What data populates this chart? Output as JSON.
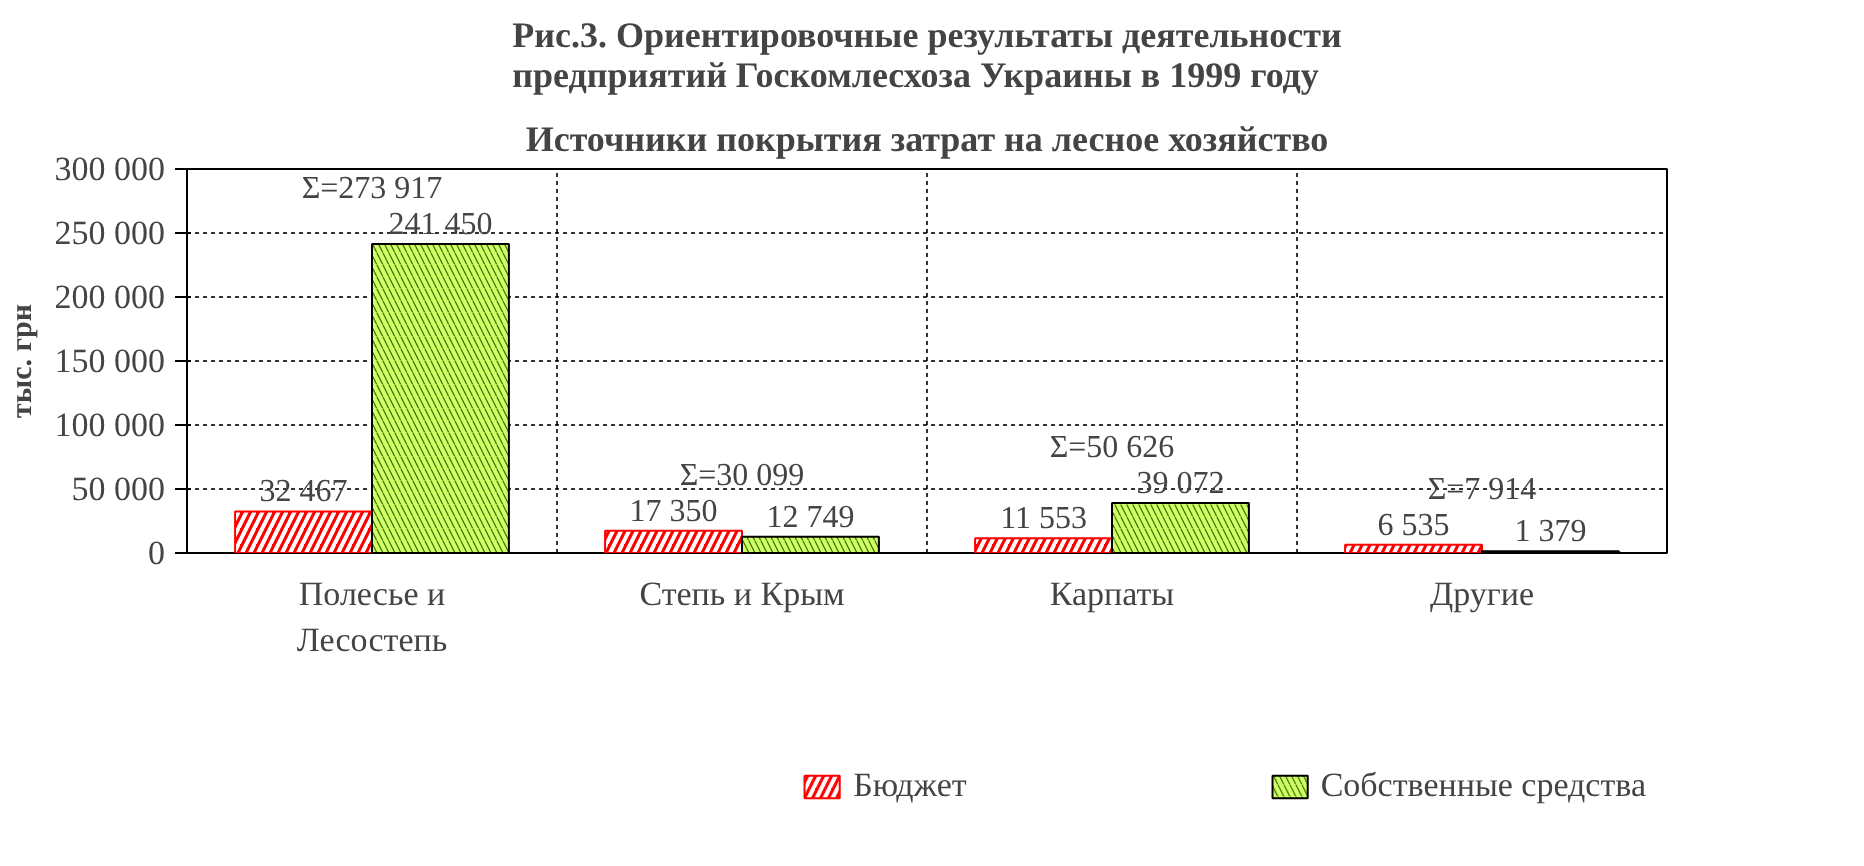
{
  "chart_data": {
    "type": "bar",
    "title": "Рис.3. Ориентировочные результаты деятельности предприятий Госкомлесхоза Украины в 1999 году",
    "subtitle": "Источники покрытия затрат на лесное хозяйство",
    "ylabel": "тыс. грн",
    "categories": [
      "Полесье и Лесостепь",
      "Степь и Крым",
      "Карпаты",
      "Другие"
    ],
    "series": [
      {
        "name": "Бюджет",
        "color": "#ff0000",
        "values": [
          32467,
          17350,
          11553,
          6535
        ],
        "value_labels": [
          "32 467",
          "17 350",
          "11 553",
          "6 535"
        ]
      },
      {
        "name": "Собственные средства",
        "color": "#ccff66",
        "values": [
          241450,
          12749,
          39072,
          1379
        ],
        "value_labels": [
          "241 450",
          "12 749",
          "39 072",
          "1 379"
        ]
      }
    ],
    "annotations": [
      "Σ=273 917",
      "Σ=30 099",
      "Σ=50 626",
      "Σ=7 914"
    ],
    "ylim": [
      0,
      300000
    ],
    "yticks": [
      0,
      {
        "value": 50000,
        "label": "50 000"
      },
      {
        "value": 100000,
        "label": "100 000"
      },
      {
        "value": 150000,
        "label": "150 000"
      },
      {
        "value": 200000,
        "label": "200 000"
      },
      {
        "value": 250000,
        "label": "250 000"
      },
      {
        "value": 300000,
        "label": "300 000"
      }
    ],
    "grid": true,
    "legend": "bottom"
  }
}
